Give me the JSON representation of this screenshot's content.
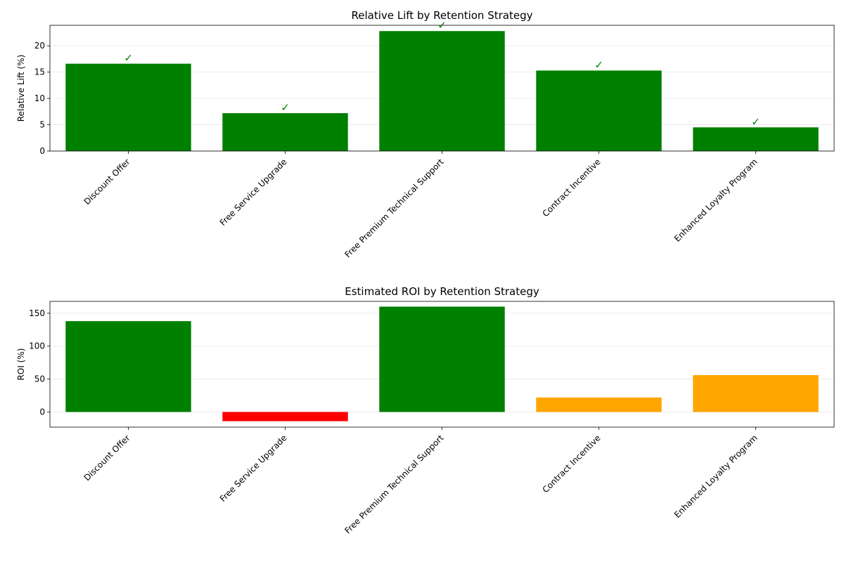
{
  "chart_data": [
    {
      "type": "bar",
      "title": "Relative Lift by Retention Strategy",
      "xlabel": "",
      "ylabel": "Relative Lift (%)",
      "categories": [
        "Discount Offer",
        "Free Service Upgrade",
        "Free Premium Technical Support",
        "Contract Incentive",
        "Enhanced Loyalty Program"
      ],
      "values": [
        16.6,
        7.2,
        22.8,
        15.3,
        4.5
      ],
      "bar_colors": [
        "#008000",
        "#008000",
        "#008000",
        "#008000",
        "#008000"
      ],
      "annotations": [
        "✓",
        "✓",
        "✓",
        "✓",
        "✓"
      ],
      "annotation_color": "#008000",
      "ylim": [
        0,
        23.9
      ],
      "yticks": [
        0,
        5,
        10,
        15,
        20
      ],
      "grid": "y",
      "tick_label_rotation": 45
    },
    {
      "type": "bar",
      "title": "Estimated ROI by Retention Strategy",
      "xlabel": "",
      "ylabel": "ROI (%)",
      "categories": [
        "Discount Offer",
        "Free Service Upgrade",
        "Free Premium Technical Support",
        "Contract Incentive",
        "Enhanced Loyalty Program"
      ],
      "values": [
        138,
        -14,
        160,
        22,
        56
      ],
      "bar_colors": [
        "#008000",
        "#ff0000",
        "#008000",
        "#ffa500",
        "#ffa500"
      ],
      "ylim": [
        -23,
        168
      ],
      "yticks": [
        0,
        50,
        100,
        150
      ],
      "grid": "y",
      "tick_label_rotation": 45
    }
  ]
}
